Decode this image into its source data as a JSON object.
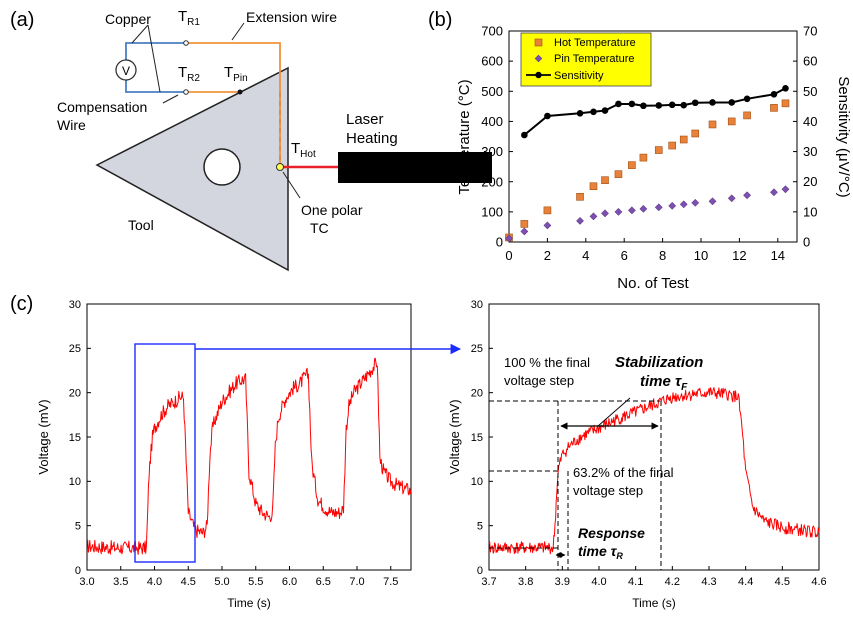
{
  "panel_a": {
    "label": "(a)",
    "copper": "Copper",
    "voltmeter": "V",
    "tr1_main": "T",
    "tr1_sub": "R1",
    "tr2_main": "T",
    "tr2_sub": "R2",
    "tpin_main": "T",
    "tpin_sub": "Pin",
    "thot_main": "T",
    "thot_sub": "Hot",
    "extension_wire": "Extension wire",
    "compensation_line1": "Compensation",
    "compensation_line2": "Wire",
    "laser_line1": "Laser",
    "laser_line2": "Heating",
    "tool": "Tool",
    "onepolar_line1": "One polar",
    "onepolar_line2": "TC",
    "colors": {
      "copper_wire": "#4a7fc1",
      "extension_wire": "#f0923a",
      "hot_wire": "#e8202a",
      "tool_fill": "#d3d6de",
      "heater": "#000000"
    }
  },
  "panel_b": {
    "label": "(b)",
    "colors": {
      "hot": "#e8823a",
      "pin": "#7d4fb0",
      "sens": "#000000",
      "legend_bg": "#ffff00"
    }
  },
  "panel_c": {
    "label": "(c)",
    "right_annotations": {
      "hundred_line1": "100 % the final",
      "hundred_line2": "voltage step",
      "stab_line1": "Stabilization",
      "stab_line2": "time τ",
      "stab_sub": "F",
      "sixty_line1": "63.2% of the final",
      "sixty_line2": "voltage step",
      "resp_line1": "Response",
      "resp_line2": "time τ",
      "resp_sub": "R"
    },
    "colors": {
      "signal": "#ff0000",
      "box": "#1c2cff"
    }
  },
  "chart_data": [
    {
      "type": "scatter",
      "id": "b",
      "xlabel": "No. of Test",
      "ylabel": "Temperature (°C)",
      "y2label": "Sensitivity (μV/°C)",
      "xlim": [
        0,
        15
      ],
      "ylim": [
        0,
        700
      ],
      "y2lim": [
        0,
        70
      ],
      "xticks": [
        0,
        2,
        4,
        6,
        8,
        10,
        12,
        14
      ],
      "yticks": [
        0,
        100,
        200,
        300,
        400,
        500,
        600,
        700
      ],
      "y2ticks": [
        0,
        10,
        20,
        30,
        40,
        50,
        60,
        70
      ],
      "legend_position": "top-left",
      "series": [
        {
          "name": "Hot Temperature",
          "axis": "left",
          "marker": "square",
          "x": [
            0,
            0.8,
            2,
            3.7,
            4.4,
            5,
            5.7,
            6.4,
            7,
            7.8,
            8.5,
            9.1,
            9.7,
            10.6,
            11.6,
            12.4,
            13.8,
            14.4
          ],
          "y": [
            15,
            60,
            105,
            150,
            185,
            205,
            225,
            255,
            280,
            305,
            320,
            340,
            360,
            390,
            400,
            420,
            445,
            460
          ]
        },
        {
          "name": "Pin Temperature",
          "axis": "left",
          "marker": "diamond",
          "x": [
            0,
            0.8,
            2,
            3.7,
            4.4,
            5,
            5.7,
            6.4,
            7,
            7.8,
            8.5,
            9.1,
            9.7,
            10.6,
            11.6,
            12.4,
            13.8,
            14.4
          ],
          "y": [
            12,
            35,
            55,
            70,
            85,
            95,
            100,
            105,
            110,
            115,
            120,
            125,
            130,
            135,
            145,
            155,
            165,
            175
          ]
        },
        {
          "name": "Sensitivity",
          "axis": "right",
          "marker": "circle",
          "x": [
            0.8,
            2,
            3.7,
            4.4,
            5,
            5.7,
            6.4,
            7,
            7.8,
            8.5,
            9.1,
            9.7,
            10.6,
            11.6,
            12.4,
            13.8,
            14.4
          ],
          "y": [
            35.5,
            41.8,
            42.7,
            43.2,
            43.6,
            45.8,
            45.8,
            45.2,
            45.3,
            45.5,
            45.4,
            46.2,
            46.3,
            46.3,
            47.5,
            49,
            51
          ]
        }
      ]
    },
    {
      "type": "line",
      "id": "c-left",
      "xlabel": "Time (s)",
      "ylabel": "Voltage (mV)",
      "xlim": [
        3.0,
        7.8
      ],
      "ylim": [
        0,
        30
      ],
      "xticks": [
        3.0,
        3.5,
        4.0,
        4.5,
        5.0,
        5.5,
        6.0,
        6.5,
        7.0,
        7.5
      ],
      "yticks": [
        0,
        5,
        10,
        15,
        20,
        25,
        30
      ],
      "series": [
        {
          "name": "",
          "x": [
            3.0,
            3.2,
            3.4,
            3.6,
            3.8,
            3.88,
            3.92,
            3.97,
            4.0,
            4.1,
            4.2,
            4.3,
            4.38,
            4.43,
            4.5,
            4.6,
            4.72,
            4.78,
            4.82,
            4.86,
            4.9,
            5.0,
            5.1,
            5.2,
            5.3,
            5.35,
            5.4,
            5.5,
            5.6,
            5.7,
            5.75,
            5.79,
            5.83,
            5.87,
            5.95,
            6.05,
            6.15,
            6.25,
            6.28,
            6.33,
            6.42,
            6.52,
            6.62,
            6.75,
            6.8,
            6.84,
            6.88,
            6.95,
            7.05,
            7.15,
            7.25,
            7.3,
            7.34,
            7.4,
            7.5,
            7.6,
            7.7,
            7.8
          ],
          "y": [
            2.7,
            2.6,
            2.5,
            2.5,
            2.5,
            2.5,
            11,
            15,
            16,
            17.5,
            18.5,
            19,
            19.5,
            19.5,
            6.5,
            4.5,
            4.2,
            5.0,
            13,
            16,
            17,
            19,
            20,
            21,
            21.5,
            21.5,
            11,
            7.5,
            6.5,
            6.0,
            6.5,
            14,
            17,
            18,
            19.5,
            20.5,
            21,
            22,
            22,
            12,
            8,
            7,
            6.5,
            6.5,
            7,
            16,
            18.5,
            20,
            21,
            22,
            23,
            23.5,
            12.5,
            11,
            10,
            9.5,
            9.2,
            9.0
          ]
        }
      ]
    },
    {
      "type": "line",
      "id": "c-right",
      "xlabel": "Time (s)",
      "ylabel": "Voltage (mV)",
      "xlim": [
        3.7,
        4.6
      ],
      "ylim": [
        0,
        30
      ],
      "xticks": [
        3.7,
        3.8,
        3.9,
        4.0,
        4.1,
        4.2,
        4.3,
        4.4,
        4.5,
        4.6
      ],
      "yticks": [
        0,
        5,
        10,
        15,
        20,
        25,
        30
      ],
      "series": [
        {
          "name": "",
          "x": [
            3.7,
            3.8,
            3.875,
            3.88,
            3.885,
            3.89,
            3.9,
            3.92,
            3.95,
            4.0,
            4.05,
            4.1,
            4.17,
            4.2,
            4.25,
            4.3,
            4.35,
            4.38,
            4.39,
            4.4,
            4.42,
            4.45,
            4.5,
            4.55,
            4.6
          ],
          "y": [
            2.5,
            2.5,
            2.5,
            5,
            9,
            11.5,
            13,
            14,
            15,
            16,
            17,
            17.8,
            19,
            19.5,
            19.8,
            20,
            19.8,
            19.5,
            16,
            11,
            7,
            5.5,
            4.8,
            4.5,
            4.2
          ]
        }
      ]
    }
  ]
}
